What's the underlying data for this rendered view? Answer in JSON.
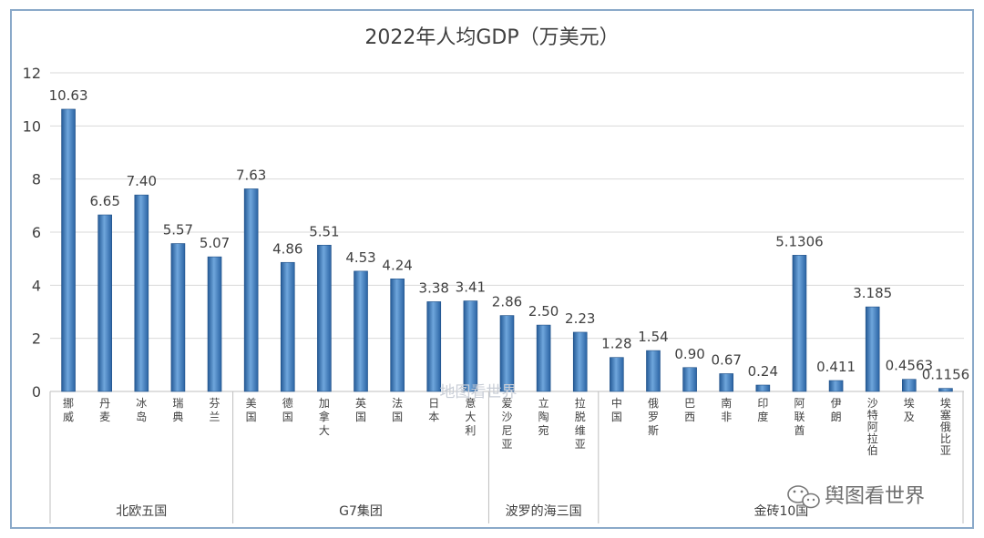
{
  "chart_data": {
    "type": "bar",
    "title": "2022年人均GDP（万美元）",
    "xlabel": "",
    "ylabel": "",
    "ylim": [
      0,
      12
    ],
    "yticks": [
      0,
      2,
      4,
      6,
      8,
      10,
      12
    ],
    "grid": true,
    "bar_color": "#3f7fc0",
    "groups": [
      {
        "name": "北欧五国",
        "size": 5
      },
      {
        "name": "G7集团",
        "size": 7
      },
      {
        "name": "波罗的海三国",
        "size": 3
      },
      {
        "name": "金砖10国",
        "size": 10
      }
    ],
    "categories": [
      "挪威",
      "丹麦",
      "冰岛",
      "瑞典",
      "芬兰",
      "美国",
      "德国",
      "加拿大",
      "英国",
      "法国",
      "日本",
      "意大利",
      "爱沙尼亚",
      "立陶宛",
      "拉脱维亚",
      "中国",
      "俄罗斯",
      "巴西",
      "南非",
      "印度",
      "阿联酋",
      "伊朗",
      "沙特阿拉伯",
      "埃及",
      "埃塞俄比亚"
    ],
    "values": [
      10.63,
      6.65,
      7.4,
      5.57,
      5.07,
      7.63,
      4.86,
      5.51,
      4.53,
      4.24,
      3.38,
      3.41,
      2.86,
      2.5,
      2.23,
      1.28,
      1.54,
      0.9,
      0.67,
      0.24,
      5.1306,
      0.411,
      3.185,
      0.4563,
      0.1156
    ],
    "labels": [
      "10.63",
      "6.65",
      "7.40",
      "5.57",
      "5.07",
      "7.63",
      "4.86",
      "5.51",
      "4.53",
      "4.24",
      "3.38",
      "3.41",
      "2.86",
      "2.50",
      "2.23",
      "1.28",
      "1.54",
      "0.90",
      "0.67",
      "0.24",
      "5.1306",
      "0.411",
      "3.185",
      "0.4563",
      "0.1156"
    ]
  },
  "watermark": "地图看世界",
  "wechat_account": "舆图看世界",
  "wechat_icon": "wechat-icon"
}
